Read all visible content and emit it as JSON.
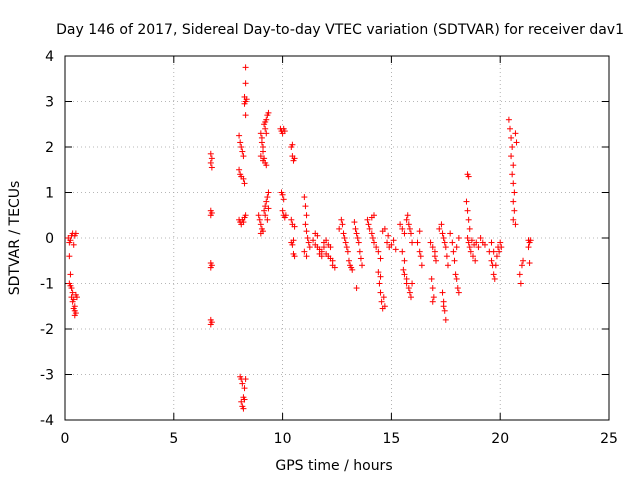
{
  "chart_data": {
    "type": "scatter",
    "title": "Day 146 of 2017, Sidereal Day-to-day VTEC variation (SDTVAR) for receiver dav1",
    "xlabel": "GPS time / hours",
    "ylabel": "SDTVAR / TECUs",
    "xlim": [
      0,
      25
    ],
    "ylim": [
      -4,
      4
    ],
    "xticks": [
      "0",
      "5",
      "10",
      "15",
      "20",
      "25"
    ],
    "yticks": [
      "-4",
      "-3",
      "-2",
      "-1",
      "0",
      "1",
      "2",
      "3",
      "4"
    ],
    "grid": true,
    "marker": "plus",
    "marker_color": "#ff0000",
    "series": [
      {
        "name": "dav1",
        "points": [
          [
            0.15,
            0.0
          ],
          [
            0.2,
            -0.1
          ],
          [
            0.25,
            -0.05
          ],
          [
            0.3,
            0.05
          ],
          [
            0.35,
            0.1
          ],
          [
            0.4,
            -0.15
          ],
          [
            0.45,
            0.05
          ],
          [
            0.5,
            0.1
          ],
          [
            0.2,
            -0.4
          ],
          [
            0.25,
            -0.8
          ],
          [
            0.2,
            -1.0
          ],
          [
            0.25,
            -1.05
          ],
          [
            0.3,
            -1.1
          ],
          [
            0.35,
            -1.2
          ],
          [
            0.3,
            -1.3
          ],
          [
            0.35,
            -1.4
          ],
          [
            0.4,
            -1.35
          ],
          [
            0.45,
            -1.5
          ],
          [
            0.4,
            -1.55
          ],
          [
            0.45,
            -1.6
          ],
          [
            0.5,
            -1.65
          ],
          [
            0.45,
            -1.7
          ],
          [
            0.5,
            -1.25
          ],
          [
            0.55,
            -1.3
          ],
          [
            6.7,
            1.85
          ],
          [
            6.75,
            1.75
          ],
          [
            6.7,
            1.65
          ],
          [
            6.75,
            1.55
          ],
          [
            6.7,
            0.6
          ],
          [
            6.75,
            0.55
          ],
          [
            6.7,
            0.5
          ],
          [
            6.7,
            -0.55
          ],
          [
            6.75,
            -0.6
          ],
          [
            6.7,
            -0.65
          ],
          [
            6.7,
            -1.8
          ],
          [
            6.75,
            -1.85
          ],
          [
            6.7,
            -1.9
          ],
          [
            8.0,
            2.25
          ],
          [
            8.05,
            2.1
          ],
          [
            8.1,
            2.0
          ],
          [
            8.15,
            1.9
          ],
          [
            8.2,
            1.8
          ],
          [
            8.0,
            1.5
          ],
          [
            8.05,
            1.4
          ],
          [
            8.1,
            1.35
          ],
          [
            8.2,
            1.3
          ],
          [
            8.25,
            1.2
          ],
          [
            8.3,
            3.75
          ],
          [
            8.3,
            3.4
          ],
          [
            8.25,
            3.1
          ],
          [
            8.3,
            3.0
          ],
          [
            8.35,
            3.05
          ],
          [
            8.25,
            2.95
          ],
          [
            8.3,
            2.7
          ],
          [
            8.0,
            0.4
          ],
          [
            8.05,
            0.35
          ],
          [
            8.1,
            0.3
          ],
          [
            8.15,
            0.4
          ],
          [
            8.25,
            0.45
          ],
          [
            8.3,
            0.5
          ],
          [
            8.2,
            0.35
          ],
          [
            8.05,
            -3.05
          ],
          [
            8.1,
            -3.1
          ],
          [
            8.15,
            -3.2
          ],
          [
            8.25,
            -3.3
          ],
          [
            8.3,
            -3.1
          ],
          [
            8.2,
            -3.5
          ],
          [
            8.1,
            -3.6
          ],
          [
            8.15,
            -3.7
          ],
          [
            8.2,
            -3.75
          ],
          [
            8.25,
            -3.55
          ],
          [
            9.0,
            2.3
          ],
          [
            9.05,
            2.1
          ],
          [
            9.1,
            2.0
          ],
          [
            9.0,
            1.8
          ],
          [
            9.1,
            1.7
          ],
          [
            9.15,
            1.75
          ],
          [
            9.2,
            1.65
          ],
          [
            9.25,
            1.6
          ],
          [
            9.1,
            1.9
          ],
          [
            9.15,
            2.5
          ],
          [
            9.2,
            2.55
          ],
          [
            9.25,
            2.6
          ],
          [
            9.3,
            2.7
          ],
          [
            9.35,
            2.75
          ],
          [
            9.2,
            2.4
          ],
          [
            9.25,
            2.3
          ],
          [
            9.05,
            2.2
          ],
          [
            8.9,
            0.5
          ],
          [
            8.95,
            0.4
          ],
          [
            9.0,
            0.3
          ],
          [
            9.05,
            0.2
          ],
          [
            9.0,
            0.1
          ],
          [
            9.1,
            0.15
          ],
          [
            9.15,
            0.6
          ],
          [
            9.2,
            0.7
          ],
          [
            9.25,
            0.8
          ],
          [
            9.3,
            0.9
          ],
          [
            9.35,
            1.0
          ],
          [
            9.2,
            0.5
          ],
          [
            9.3,
            0.4
          ],
          [
            9.35,
            0.65
          ],
          [
            9.9,
            2.4
          ],
          [
            9.95,
            2.35
          ],
          [
            10.0,
            2.3
          ],
          [
            10.05,
            2.4
          ],
          [
            10.1,
            2.35
          ],
          [
            9.95,
            1.0
          ],
          [
            10.0,
            0.95
          ],
          [
            10.05,
            0.85
          ],
          [
            10.0,
            0.6
          ],
          [
            10.05,
            0.5
          ],
          [
            10.1,
            0.45
          ],
          [
            10.15,
            0.5
          ],
          [
            10.4,
            2.0
          ],
          [
            10.45,
            1.8
          ],
          [
            10.5,
            1.7
          ],
          [
            10.55,
            1.75
          ],
          [
            10.45,
            2.05
          ],
          [
            10.4,
            -0.1
          ],
          [
            10.5,
            -0.05
          ],
          [
            10.45,
            -0.15
          ],
          [
            10.5,
            -0.35
          ],
          [
            10.55,
            -0.4
          ],
          [
            10.4,
            0.4
          ],
          [
            10.45,
            0.3
          ],
          [
            10.55,
            0.25
          ],
          [
            11.0,
            0.9
          ],
          [
            11.05,
            0.7
          ],
          [
            11.1,
            0.5
          ],
          [
            11.05,
            0.3
          ],
          [
            11.1,
            0.15
          ],
          [
            11.15,
            0.0
          ],
          [
            11.2,
            -0.1
          ],
          [
            11.25,
            -0.2
          ],
          [
            11.0,
            -0.3
          ],
          [
            11.1,
            -0.4
          ],
          [
            11.4,
            -0.05
          ],
          [
            11.5,
            -0.15
          ],
          [
            11.6,
            -0.2
          ],
          [
            11.7,
            -0.25
          ],
          [
            11.8,
            -0.3
          ],
          [
            11.9,
            -0.2
          ],
          [
            12.0,
            -0.35
          ],
          [
            12.1,
            -0.4
          ],
          [
            12.2,
            -0.45
          ],
          [
            12.3,
            -0.5
          ],
          [
            11.5,
            0.1
          ],
          [
            11.6,
            0.05
          ],
          [
            11.7,
            -0.35
          ],
          [
            11.8,
            -0.4
          ],
          [
            11.9,
            -0.1
          ],
          [
            12.0,
            -0.05
          ],
          [
            12.1,
            -0.15
          ],
          [
            12.2,
            -0.2
          ],
          [
            12.3,
            -0.6
          ],
          [
            12.4,
            -0.65
          ],
          [
            12.6,
            0.2
          ],
          [
            12.7,
            0.4
          ],
          [
            12.75,
            0.3
          ],
          [
            12.8,
            0.1
          ],
          [
            12.85,
            0.0
          ],
          [
            12.9,
            -0.1
          ],
          [
            12.95,
            -0.2
          ],
          [
            13.0,
            -0.3
          ],
          [
            13.05,
            -0.5
          ],
          [
            13.1,
            -0.6
          ],
          [
            13.15,
            -0.65
          ],
          [
            13.2,
            -0.7
          ],
          [
            13.3,
            0.35
          ],
          [
            13.35,
            0.2
          ],
          [
            13.4,
            0.1
          ],
          [
            13.45,
            0.0
          ],
          [
            13.5,
            -0.1
          ],
          [
            13.55,
            -0.3
          ],
          [
            13.6,
            -0.45
          ],
          [
            13.65,
            -0.6
          ],
          [
            13.4,
            -1.1
          ],
          [
            13.9,
            0.4
          ],
          [
            13.95,
            0.3
          ],
          [
            14.0,
            0.2
          ],
          [
            14.1,
            0.1
          ],
          [
            14.15,
            0.0
          ],
          [
            14.2,
            -0.1
          ],
          [
            14.3,
            -0.2
          ],
          [
            14.4,
            -0.3
          ],
          [
            14.5,
            -0.45
          ],
          [
            14.2,
            0.5
          ],
          [
            14.1,
            0.45
          ],
          [
            14.4,
            -0.75
          ],
          [
            14.5,
            -0.85
          ],
          [
            14.45,
            -1.0
          ],
          [
            14.5,
            -1.2
          ],
          [
            14.55,
            -1.4
          ],
          [
            14.6,
            -1.55
          ],
          [
            14.7,
            -1.5
          ],
          [
            14.65,
            -1.3
          ],
          [
            14.8,
            -0.1
          ],
          [
            14.9,
            -0.2
          ],
          [
            15.0,
            -0.15
          ],
          [
            15.1,
            -0.05
          ],
          [
            15.2,
            -0.25
          ],
          [
            14.7,
            0.2
          ],
          [
            14.6,
            0.15
          ],
          [
            14.85,
            0.05
          ],
          [
            15.4,
            0.3
          ],
          [
            15.5,
            0.2
          ],
          [
            15.6,
            0.1
          ],
          [
            15.7,
            0.4
          ],
          [
            15.75,
            0.5
          ],
          [
            15.8,
            0.3
          ],
          [
            15.85,
            0.2
          ],
          [
            15.9,
            0.1
          ],
          [
            15.95,
            -0.1
          ],
          [
            15.5,
            -0.3
          ],
          [
            15.6,
            -0.5
          ],
          [
            15.55,
            -0.7
          ],
          [
            15.6,
            -0.8
          ],
          [
            15.7,
            -1.0
          ],
          [
            15.8,
            -1.1
          ],
          [
            15.85,
            -1.2
          ],
          [
            15.9,
            -1.3
          ],
          [
            15.95,
            -1.0
          ],
          [
            15.7,
            -0.9
          ],
          [
            16.3,
            0.15
          ],
          [
            16.2,
            -0.1
          ],
          [
            16.3,
            -0.3
          ],
          [
            16.4,
            -0.6
          ],
          [
            16.35,
            -0.4
          ],
          [
            16.8,
            -0.1
          ],
          [
            16.9,
            -0.2
          ],
          [
            17.0,
            -0.3
          ],
          [
            17.05,
            -0.5
          ],
          [
            16.85,
            -0.9
          ],
          [
            16.9,
            -1.1
          ],
          [
            16.95,
            -1.3
          ],
          [
            16.9,
            -1.4
          ],
          [
            17.0,
            -0.4
          ],
          [
            17.2,
            0.2
          ],
          [
            17.3,
            0.3
          ],
          [
            17.35,
            0.1
          ],
          [
            17.4,
            0.0
          ],
          [
            17.45,
            -0.1
          ],
          [
            17.5,
            -0.2
          ],
          [
            17.55,
            -0.4
          ],
          [
            17.6,
            -0.6
          ],
          [
            17.35,
            -1.2
          ],
          [
            17.4,
            -1.4
          ],
          [
            17.45,
            -1.6
          ],
          [
            17.5,
            -1.8
          ],
          [
            17.4,
            -1.5
          ],
          [
            17.7,
            0.1
          ],
          [
            17.8,
            -0.1
          ],
          [
            17.85,
            -0.3
          ],
          [
            17.9,
            -0.5
          ],
          [
            17.95,
            -0.8
          ],
          [
            18.0,
            -0.9
          ],
          [
            18.05,
            -1.1
          ],
          [
            18.1,
            -1.2
          ],
          [
            18.0,
            -0.2
          ],
          [
            18.1,
            0.0
          ],
          [
            18.5,
            1.4
          ],
          [
            18.55,
            1.35
          ],
          [
            18.45,
            0.8
          ],
          [
            18.5,
            0.6
          ],
          [
            18.55,
            0.4
          ],
          [
            18.6,
            0.2
          ],
          [
            18.5,
            0.0
          ],
          [
            18.55,
            -0.1
          ],
          [
            18.6,
            -0.2
          ],
          [
            18.65,
            -0.3
          ],
          [
            18.7,
            -0.05
          ],
          [
            18.8,
            -0.15
          ],
          [
            18.9,
            -0.1
          ],
          [
            19.0,
            -0.2
          ],
          [
            19.1,
            0.0
          ],
          [
            19.2,
            -0.1
          ],
          [
            19.3,
            -0.15
          ],
          [
            18.75,
            -0.4
          ],
          [
            18.85,
            -0.5
          ],
          [
            19.5,
            -0.3
          ],
          [
            19.6,
            -0.5
          ],
          [
            19.65,
            -0.6
          ],
          [
            19.7,
            -0.8
          ],
          [
            19.75,
            -0.9
          ],
          [
            19.8,
            -0.6
          ],
          [
            19.85,
            -0.4
          ],
          [
            19.9,
            -0.2
          ],
          [
            19.95,
            -0.3
          ],
          [
            20.0,
            -0.1
          ],
          [
            20.05,
            -0.2
          ],
          [
            19.6,
            -0.1
          ],
          [
            19.7,
            -0.3
          ],
          [
            20.4,
            2.6
          ],
          [
            20.45,
            2.4
          ],
          [
            20.5,
            2.2
          ],
          [
            20.55,
            2.0
          ],
          [
            20.5,
            1.8
          ],
          [
            20.6,
            1.6
          ],
          [
            20.55,
            1.4
          ],
          [
            20.6,
            1.2
          ],
          [
            20.65,
            1.0
          ],
          [
            20.6,
            0.8
          ],
          [
            20.65,
            0.6
          ],
          [
            20.6,
            0.4
          ],
          [
            20.7,
            0.3
          ],
          [
            20.7,
            2.3
          ],
          [
            20.75,
            2.1
          ],
          [
            20.9,
            -0.8
          ],
          [
            20.95,
            -1.0
          ],
          [
            21.0,
            -0.6
          ],
          [
            21.05,
            -0.5
          ],
          [
            21.3,
            -0.05
          ],
          [
            21.35,
            -0.1
          ],
          [
            21.3,
            -0.2
          ],
          [
            21.4,
            -0.05
          ],
          [
            21.35,
            -0.55
          ]
        ]
      }
    ]
  }
}
